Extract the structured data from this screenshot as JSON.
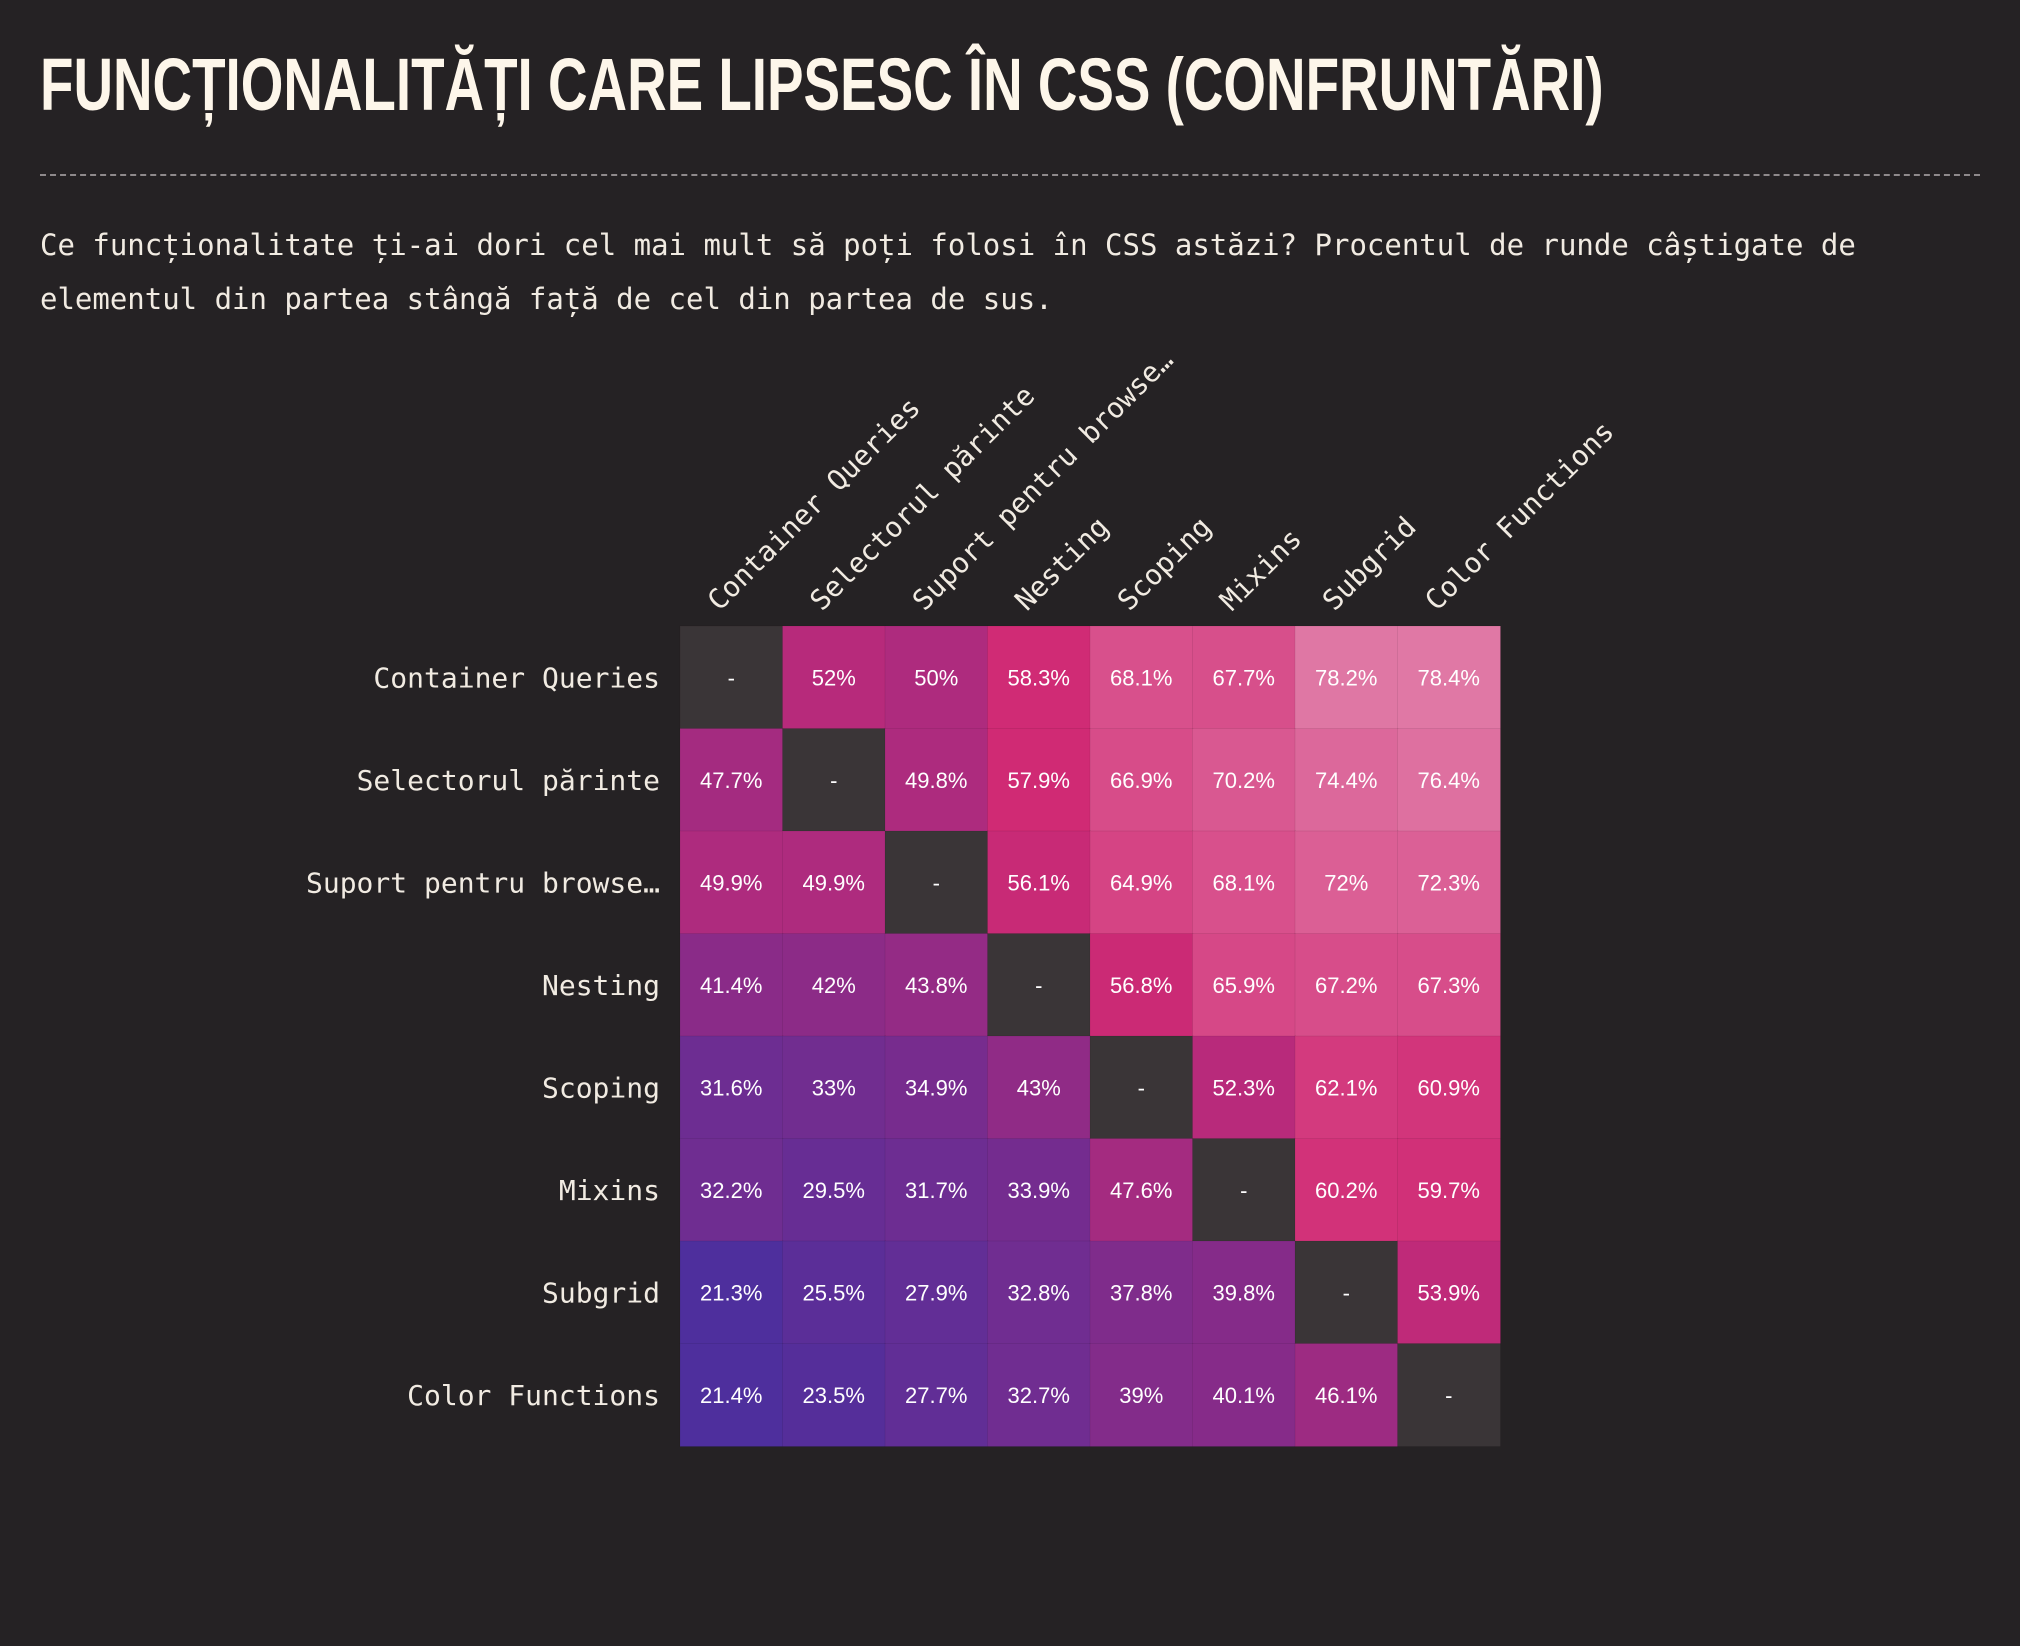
{
  "header": {
    "title": "FUNCȚIONALITĂȚI CARE LIPSESC ÎN CSS (CONFRUNTĂRI)",
    "description": "Ce funcționalitate ți-ai dori cel mai mult să poți folosi în CSS astăzi? Procentul de runde câștigate de elementul din partea stângă față de cel din partea de sus."
  },
  "colors": {
    "background": "#252224",
    "diagonal": "#3a3537",
    "low": "#4a2f9e",
    "mid_low": "#8c2b87",
    "mid": "#d02a74",
    "high": "#e07aa6"
  },
  "chart_data": {
    "type": "heatmap",
    "rows": [
      "Container Queries",
      "Selectorul părinte",
      "Suport pentru browse…",
      "Nesting",
      "Scoping",
      "Mixins",
      "Subgrid",
      "Color Functions"
    ],
    "columns": [
      "Container Queries",
      "Selectorul părinte",
      "Suport pentru browse…",
      "Nesting",
      "Scoping",
      "Mixins",
      "Subgrid",
      "Color Functions"
    ],
    "values": [
      [
        null,
        52,
        50,
        58.3,
        68.1,
        67.7,
        78.2,
        78.4
      ],
      [
        47.7,
        null,
        49.8,
        57.9,
        66.9,
        70.2,
        74.4,
        76.4
      ],
      [
        49.9,
        49.9,
        null,
        56.1,
        64.9,
        68.1,
        72,
        72.3
      ],
      [
        41.4,
        42,
        43.8,
        null,
        56.8,
        65.9,
        67.2,
        67.3
      ],
      [
        31.6,
        33,
        34.9,
        43,
        null,
        52.3,
        62.1,
        60.9
      ],
      [
        32.2,
        29.5,
        31.7,
        33.9,
        47.6,
        null,
        60.2,
        59.7
      ],
      [
        21.3,
        25.5,
        27.9,
        32.8,
        37.8,
        39.8,
        null,
        53.9
      ],
      [
        21.4,
        23.5,
        27.7,
        32.7,
        39,
        40.1,
        46.1,
        null
      ]
    ],
    "labels": [
      [
        "-",
        "52%",
        "50%",
        "58.3%",
        "68.1%",
        "67.7%",
        "78.2%",
        "78.4%"
      ],
      [
        "47.7%",
        "-",
        "49.8%",
        "57.9%",
        "66.9%",
        "70.2%",
        "74.4%",
        "76.4%"
      ],
      [
        "49.9%",
        "49.9%",
        "-",
        "56.1%",
        "64.9%",
        "68.1%",
        "72%",
        "72.3%"
      ],
      [
        "41.4%",
        "42%",
        "43.8%",
        "-",
        "56.8%",
        "65.9%",
        "67.2%",
        "67.3%"
      ],
      [
        "31.6%",
        "33%",
        "34.9%",
        "43%",
        "-",
        "52.3%",
        "62.1%",
        "60.9%"
      ],
      [
        "32.2%",
        "29.5%",
        "31.7%",
        "33.9%",
        "47.6%",
        "-",
        "60.2%",
        "59.7%"
      ],
      [
        "21.3%",
        "25.5%",
        "27.9%",
        "32.8%",
        "37.8%",
        "39.8%",
        "-",
        "53.9%"
      ],
      [
        "21.4%",
        "23.5%",
        "27.7%",
        "32.7%",
        "39%",
        "40.1%",
        "46.1%",
        "-"
      ]
    ]
  }
}
